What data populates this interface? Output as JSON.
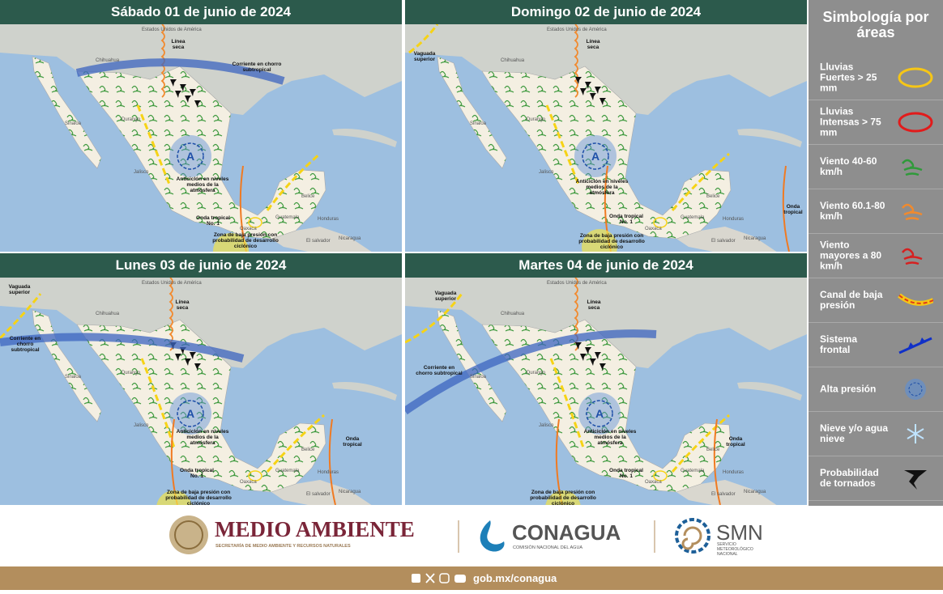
{
  "panels": [
    {
      "title": "Sábado 01 de junio de 2024",
      "annotations": [
        "Línea seca",
        "Corriente en chorro subtropical",
        "Anticiclón en niveles medios de la atmósfera",
        "Onda tropical No. 1",
        "Zona de baja presión con probabilidad de desarrollo ciclónico"
      ]
    },
    {
      "title": "Domingo 02 de junio de 2024",
      "annotations": [
        "Vaguada superior",
        "Línea seca",
        "Anticiclón en niveles medios de la atmósfera",
        "Onda tropical No. 1",
        "Zona de baja presión con probabilidad de desarrollo ciclónico",
        "Onda tropical"
      ]
    },
    {
      "title": "Lunes 03 de junio de 2024",
      "annotations": [
        "Vaguada superior",
        "Línea seca",
        "Corriente en chorro subtropical",
        "Anticiclón en niveles medios de la atmósfera",
        "Onda tropical No. 1",
        "Zona de baja presión con probabilidad de desarrollo ciclónico",
        "Onda tropical"
      ]
    },
    {
      "title": "Martes 04 de junio de 2024",
      "annotations": [
        "Vaguada superior",
        "Línea seca",
        "Corriente en chorro subtropical",
        "Anticiclón en niveles medios de la atmósfera",
        "Onda tropical No. 1",
        "Zona de baja presión con probabilidad de desarrollo ciclónico",
        "Onda tropical"
      ]
    }
  ],
  "anticyclone_symbol": "A",
  "map_places": [
    "Estados Unidos de América",
    "Chihuahua",
    "Sinaloa",
    "Durango",
    "Jalisco",
    "Oaxaca",
    "Belice",
    "Guatemala",
    "Honduras",
    "El salvador",
    "Nicaragua"
  ],
  "legend": {
    "title": "Simbología por áreas",
    "items": [
      "Lluvias Fuertes > 25 mm",
      "Lluvias Intensas > 75 mm",
      "Viento 40-60 km/h",
      "Viento 60.1-80 km/h",
      "Viento mayores a 80 km/h",
      "Canal de baja presión",
      "Sistema frontal",
      "Alta presión",
      "Nieve y/o agua nieve",
      "Probabilidad de tornados"
    ]
  },
  "footer": {
    "semarnat": "MEDIO AMBIENTE",
    "semarnat_sub": "SECRETARÍA DE MEDIO AMBIENTE Y RECURSOS NATURALES",
    "conagua": "CONAGUA",
    "conagua_sub": "COMISIÓN NACIONAL DEL AGUA",
    "smn": "SMN",
    "smn_sub": "SERVICIO METEOROLÓGICO NACIONAL",
    "url": "gob.mx/conagua"
  }
}
